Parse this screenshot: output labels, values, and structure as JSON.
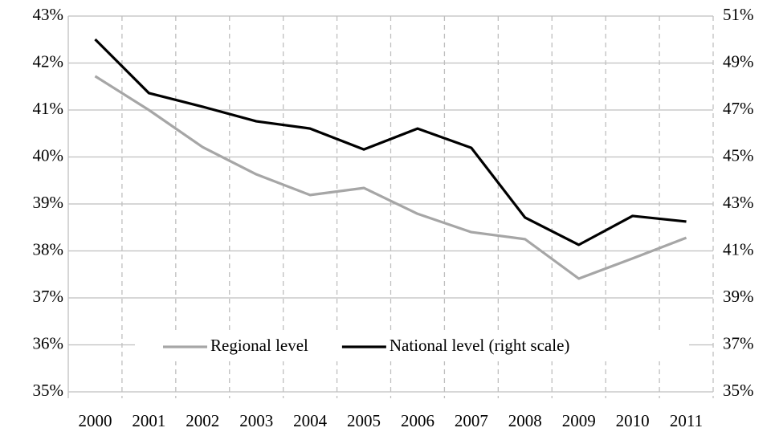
{
  "chart_data": {
    "type": "line",
    "categories": [
      "2000",
      "2001",
      "2002",
      "2003",
      "2004",
      "2005",
      "2006",
      "2007",
      "2008",
      "2009",
      "2010",
      "2011"
    ],
    "series": [
      {
        "name": "Regional level",
        "color": "#a6a6a6",
        "values": [
          41.72,
          41.0,
          40.21,
          39.63,
          39.19,
          39.34,
          38.79,
          38.4,
          38.25,
          37.41,
          37.84,
          38.28
        ]
      },
      {
        "name": "National level (right scale)",
        "color": "#000000",
        "axis": "y2",
        "values": [
          50.01,
          47.72,
          47.14,
          46.52,
          46.21,
          45.32,
          46.21,
          45.39,
          42.42,
          41.26,
          42.49,
          42.25
        ]
      }
    ],
    "ylim": [
      35,
      43
    ],
    "yticks": [
      {
        "value": 35,
        "label": "35%"
      },
      {
        "value": 36,
        "label": "36%"
      },
      {
        "value": 37,
        "label": "37%"
      },
      {
        "value": 38,
        "label": "38%"
      },
      {
        "value": 39,
        "label": "39%"
      },
      {
        "value": 40,
        "label": "40%"
      },
      {
        "value": 41,
        "label": "41%"
      },
      {
        "value": 42,
        "label": "42%"
      },
      {
        "value": 43,
        "label": "43%"
      }
    ],
    "y2lim": [
      35,
      51
    ],
    "y2ticks": [
      {
        "value": 35,
        "label": "35%"
      },
      {
        "value": 37,
        "label": "37%"
      },
      {
        "value": 39,
        "label": "39%"
      },
      {
        "value": 41,
        "label": "41%"
      },
      {
        "value": 43,
        "label": "43%"
      },
      {
        "value": 45,
        "label": "45%"
      },
      {
        "value": 47,
        "label": "47%"
      },
      {
        "value": 49,
        "label": "49%"
      },
      {
        "value": 51,
        "label": "51%"
      }
    ],
    "grid": true,
    "legend": "bottom"
  }
}
